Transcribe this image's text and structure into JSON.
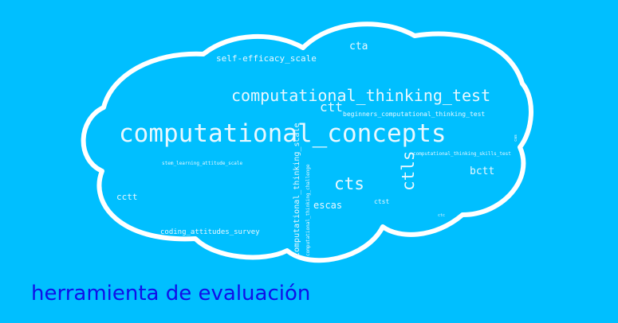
{
  "colors": {
    "background": "#00BFFF",
    "cloud_outline": "#FFFFFF",
    "word_color": "#E8F8FF",
    "caption_color": "#1010E8"
  },
  "cloud": {
    "words": {
      "computational_concepts": "computational_concepts",
      "computational_thinking_test": "computational_thinking_test",
      "self_efficacy_scale": "self-efficacy_scale",
      "cta": "cta",
      "ctt": "ctt",
      "beginners_ctt": "beginners_computational_thinking_test",
      "cts": "cts",
      "ctls": "ctls",
      "ct_skills_test": "computational_thinking_skills_test",
      "bctt": "bctt",
      "ct_scale": "computational_thinking_scale",
      "ct_challenge": "computational_thinking_challenge",
      "stem_learning": "stem_learning_attitude_scale",
      "cctt": "cctt",
      "escas": "escas",
      "ctst": "ctst",
      "coding_attitudes": "coding_attitudes_survey",
      "ctc": "ctc",
      "cas": "cas"
    }
  },
  "caption": "herramienta de evaluación"
}
